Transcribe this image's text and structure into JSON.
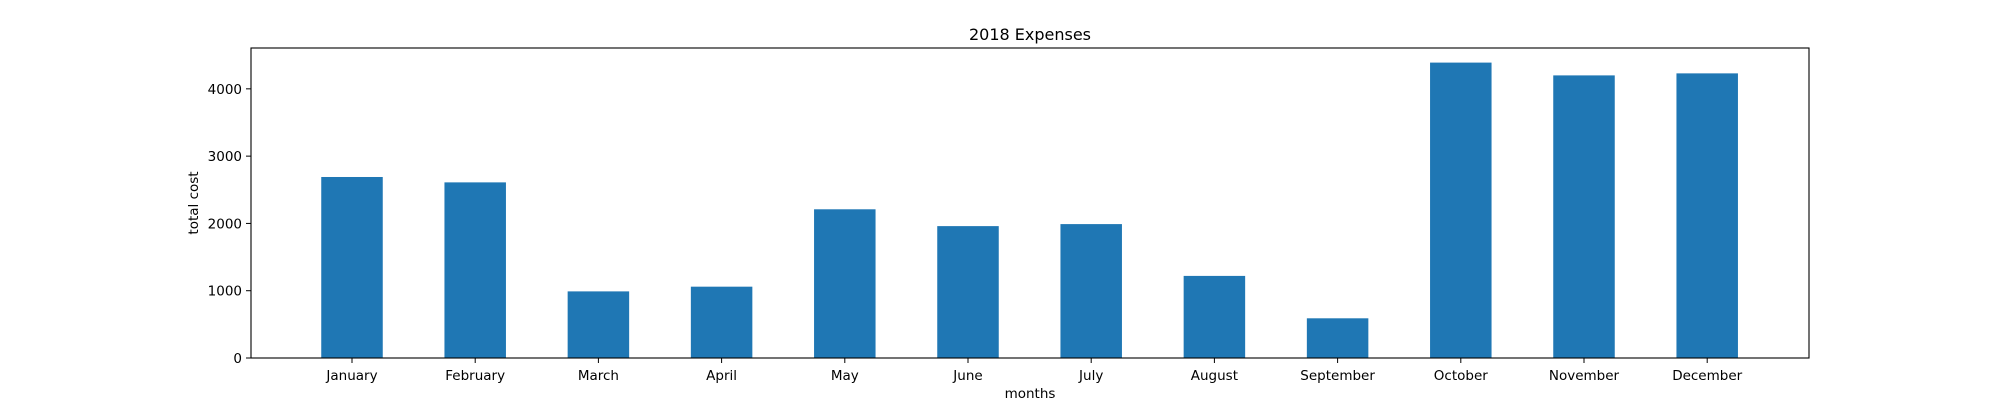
{
  "chart_data": {
    "type": "bar",
    "title": "2018 Expenses",
    "xlabel": "months",
    "ylabel": "total cost",
    "categories": [
      "January",
      "February",
      "March",
      "April",
      "May",
      "June",
      "July",
      "August",
      "September",
      "October",
      "November",
      "December"
    ],
    "values": [
      2690,
      2610,
      990,
      1060,
      2210,
      1960,
      1990,
      1220,
      590,
      4390,
      4200,
      4230
    ],
    "ylim": [
      0,
      4607
    ],
    "yticks": [
      0,
      1000,
      2000,
      3000,
      4000
    ],
    "grid": false,
    "legend": "none",
    "bar_color": "#1f77b4"
  }
}
